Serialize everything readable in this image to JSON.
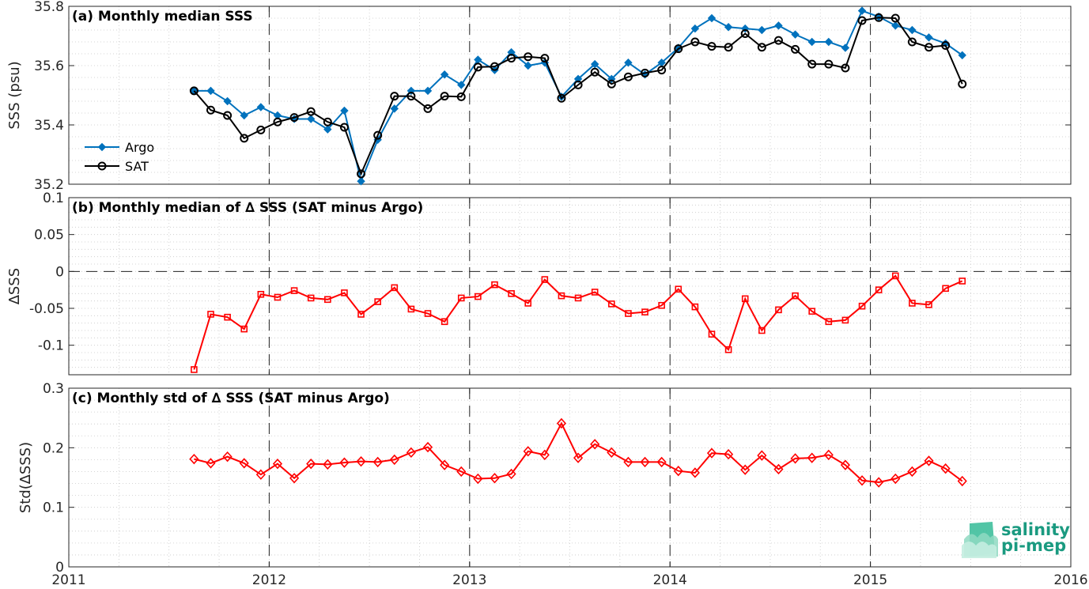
{
  "chart_data": [
    {
      "type": "line",
      "title": "(a) Monthly median SSS",
      "ylabel": "SSS (psu)",
      "xlim": [
        2011,
        2016
      ],
      "ylim": [
        35.2,
        35.8
      ],
      "xticks": [
        "2011",
        "2012",
        "2013",
        "2014",
        "2015",
        "2016"
      ],
      "yticks": [
        "35.2",
        "35.4",
        "35.6",
        "35.8"
      ],
      "grid": true,
      "legend_position": "bottom-left",
      "x": [
        "2011-08",
        "2011-09",
        "2011-10",
        "2011-11",
        "2011-12",
        "2012-01",
        "2012-02",
        "2012-03",
        "2012-04",
        "2012-05",
        "2012-06",
        "2012-07",
        "2012-08",
        "2012-09",
        "2012-10",
        "2012-11",
        "2012-12",
        "2013-01",
        "2013-02",
        "2013-03",
        "2013-04",
        "2013-05",
        "2013-06",
        "2013-07",
        "2013-08",
        "2013-09",
        "2013-10",
        "2013-11",
        "2013-12",
        "2014-01",
        "2014-02",
        "2014-03",
        "2014-04",
        "2014-05",
        "2014-06",
        "2014-07",
        "2014-08",
        "2014-09",
        "2014-10",
        "2014-11",
        "2014-12",
        "2015-01",
        "2015-02",
        "2015-03",
        "2015-04",
        "2015-05",
        "2015-06"
      ],
      "series": [
        {
          "name": "Argo",
          "color": "#0072bd",
          "marker": "diamond",
          "values": [
            35.515,
            35.515,
            35.48,
            35.432,
            35.46,
            35.432,
            35.42,
            35.42,
            35.385,
            35.448,
            35.21,
            35.35,
            35.455,
            35.515,
            35.515,
            35.57,
            35.535,
            35.62,
            35.585,
            35.645,
            35.6,
            35.61,
            35.495,
            35.555,
            35.605,
            35.555,
            35.61,
            35.57,
            35.61,
            35.66,
            35.725,
            35.76,
            35.73,
            35.725,
            35.72,
            35.735,
            35.705,
            35.68,
            35.68,
            35.66,
            35.785,
            35.765,
            35.735,
            35.72,
            35.695,
            35.675,
            35.635
          ]
        },
        {
          "name": "SAT",
          "color": "#000000",
          "marker": "circle",
          "values": [
            35.515,
            35.45,
            35.432,
            35.355,
            35.383,
            35.41,
            35.425,
            35.445,
            35.41,
            35.392,
            35.235,
            35.365,
            35.497,
            35.497,
            35.455,
            35.497,
            35.495,
            35.595,
            35.597,
            35.625,
            35.63,
            35.625,
            35.49,
            35.535,
            35.578,
            35.538,
            35.562,
            35.575,
            35.585,
            35.657,
            35.68,
            35.665,
            35.662,
            35.708,
            35.662,
            35.685,
            35.655,
            35.605,
            35.605,
            35.592,
            35.752,
            35.762,
            35.76,
            35.68,
            35.662,
            35.668,
            35.538
          ]
        }
      ]
    },
    {
      "type": "line",
      "title": "(b) Monthly median of ∆ SSS (SAT minus Argo)",
      "ylabel": "∆SSS",
      "xlim": [
        2011,
        2016
      ],
      "ylim": [
        -0.14,
        0.1
      ],
      "xticks": [
        "2011",
        "2012",
        "2013",
        "2014",
        "2015",
        "2016"
      ],
      "yticks": [
        "-0.1",
        "-0.05",
        "0",
        "0.05",
        "0.1"
      ],
      "grid": true,
      "x": [
        "2011-08",
        "2011-09",
        "2011-10",
        "2011-11",
        "2011-12",
        "2012-01",
        "2012-02",
        "2012-03",
        "2012-04",
        "2012-05",
        "2012-06",
        "2012-07",
        "2012-08",
        "2012-09",
        "2012-10",
        "2012-11",
        "2012-12",
        "2013-01",
        "2013-02",
        "2013-03",
        "2013-04",
        "2013-05",
        "2013-06",
        "2013-07",
        "2013-08",
        "2013-09",
        "2013-10",
        "2013-11",
        "2013-12",
        "2014-01",
        "2014-02",
        "2014-03",
        "2014-04",
        "2014-05",
        "2014-06",
        "2014-07",
        "2014-08",
        "2014-09",
        "2014-10",
        "2014-11",
        "2014-12",
        "2015-01",
        "2015-02",
        "2015-03",
        "2015-04",
        "2015-05",
        "2015-06"
      ],
      "series": [
        {
          "name": "",
          "color": "#ff0000",
          "marker": "square",
          "values": [
            -0.133,
            -0.058,
            -0.062,
            -0.078,
            -0.031,
            -0.035,
            -0.026,
            -0.036,
            -0.038,
            -0.029,
            -0.058,
            -0.041,
            -0.022,
            -0.051,
            -0.057,
            -0.068,
            -0.036,
            -0.034,
            -0.018,
            -0.03,
            -0.043,
            -0.011,
            -0.033,
            -0.036,
            -0.028,
            -0.044,
            -0.057,
            -0.055,
            -0.046,
            -0.024,
            -0.048,
            -0.085,
            -0.106,
            -0.037,
            -0.08,
            -0.052,
            -0.033,
            -0.054,
            -0.068,
            -0.066,
            -0.047,
            -0.025,
            -0.006,
            -0.043,
            -0.045,
            -0.023,
            -0.013
          ]
        }
      ]
    },
    {
      "type": "line",
      "title": "(c) Monthly std of ∆ SSS (SAT minus Argo)",
      "ylabel": "Std(∆SSS)",
      "xlim": [
        2011,
        2016
      ],
      "ylim": [
        0,
        0.3
      ],
      "xticks": [
        "2011",
        "2012",
        "2013",
        "2014",
        "2015",
        "2016"
      ],
      "yticks": [
        "0",
        "0.1",
        "0.2",
        "0.3"
      ],
      "grid": true,
      "x": [
        "2011-08",
        "2011-09",
        "2011-10",
        "2011-11",
        "2011-12",
        "2012-01",
        "2012-02",
        "2012-03",
        "2012-04",
        "2012-05",
        "2012-06",
        "2012-07",
        "2012-08",
        "2012-09",
        "2012-10",
        "2012-11",
        "2012-12",
        "2013-01",
        "2013-02",
        "2013-03",
        "2013-04",
        "2013-05",
        "2013-06",
        "2013-07",
        "2013-08",
        "2013-09",
        "2013-10",
        "2013-11",
        "2013-12",
        "2014-01",
        "2014-02",
        "2014-03",
        "2014-04",
        "2014-05",
        "2014-06",
        "2014-07",
        "2014-08",
        "2014-09",
        "2014-10",
        "2014-11",
        "2014-12",
        "2015-01",
        "2015-02",
        "2015-03",
        "2015-04",
        "2015-05",
        "2015-06"
      ],
      "series": [
        {
          "name": "",
          "color": "#ff0000",
          "marker": "diamond",
          "values": [
            0.181,
            0.174,
            0.185,
            0.174,
            0.155,
            0.173,
            0.149,
            0.173,
            0.172,
            0.175,
            0.177,
            0.176,
            0.18,
            0.192,
            0.201,
            0.171,
            0.16,
            0.148,
            0.149,
            0.156,
            0.194,
            0.188,
            0.241,
            0.183,
            0.206,
            0.192,
            0.176,
            0.176,
            0.176,
            0.161,
            0.158,
            0.191,
            0.189,
            0.163,
            0.187,
            0.164,
            0.182,
            0.183,
            0.188,
            0.171,
            0.145,
            0.142,
            0.148,
            0.16,
            0.178,
            0.165,
            0.144
          ]
        }
      ]
    }
  ],
  "logo": {
    "line1": "salinity",
    "line2": "pi-mep",
    "color": "#1a9a80"
  }
}
